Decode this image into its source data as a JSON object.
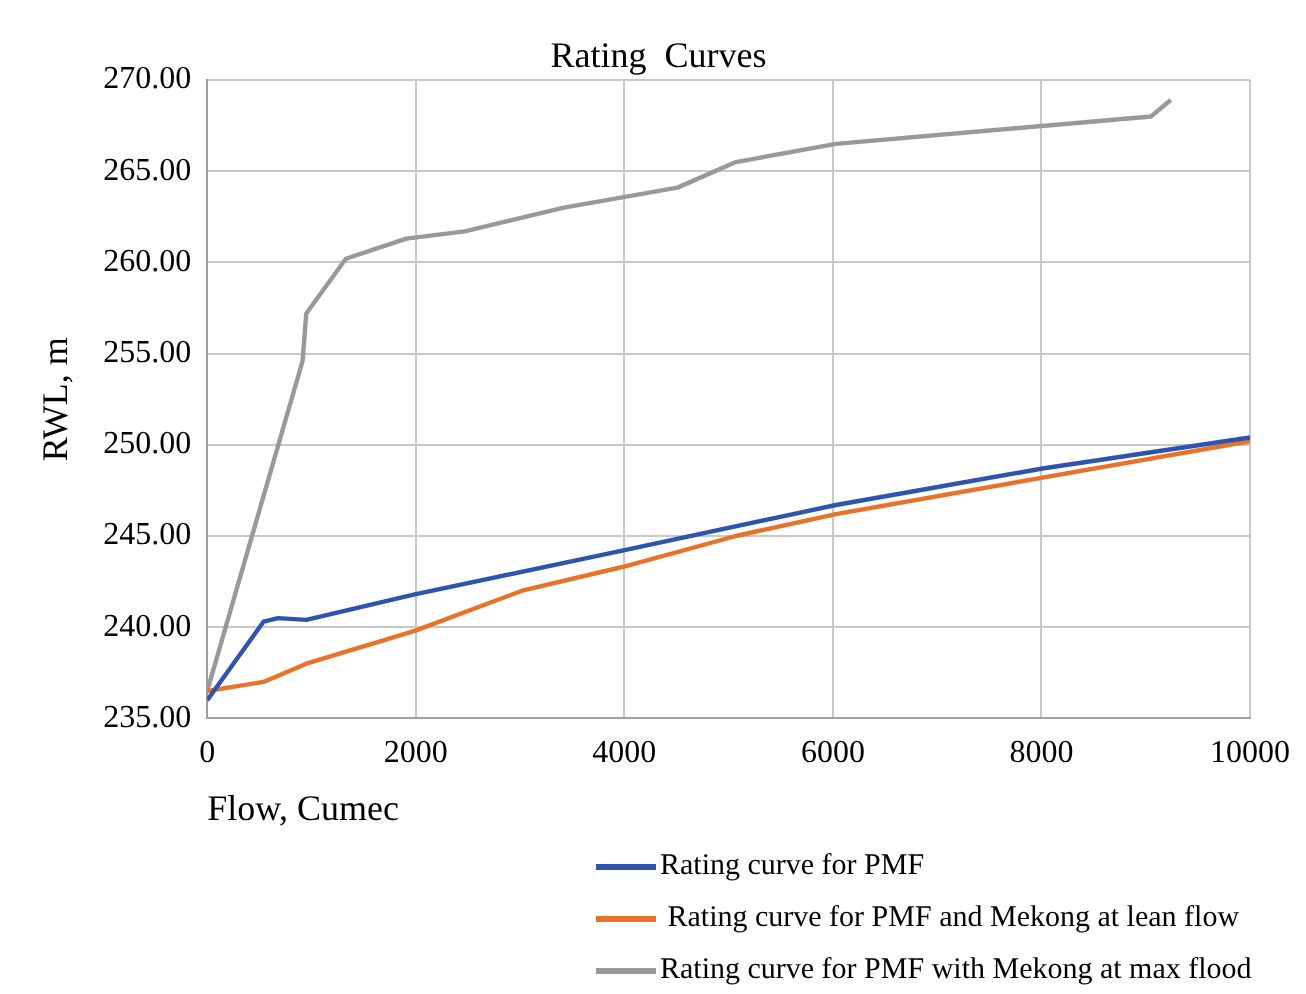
{
  "chart_data": {
    "type": "line",
    "title": "Rating  Curves",
    "xlabel": "Flow, Cumec",
    "ylabel": "RWL, m",
    "xlim": [
      0,
      10000
    ],
    "xticks": [
      0,
      2000,
      4000,
      6000,
      8000,
      10000
    ],
    "ylim": [
      235,
      270
    ],
    "yticks": [
      {
        "value": 235,
        "label": "235.00"
      },
      {
        "value": 240,
        "label": "240.00"
      },
      {
        "value": 245,
        "label": "245.00"
      },
      {
        "value": 250,
        "label": "250.00"
      },
      {
        "value": 255,
        "label": "255.00"
      },
      {
        "value": 260,
        "label": "260.00"
      },
      {
        "value": 265,
        "label": "265.00"
      },
      {
        "value": 270,
        "label": "270.00"
      }
    ],
    "grid": true,
    "legend": "bottom",
    "marker": "none",
    "line_style": "solid",
    "series": [
      {
        "name": "Rating curve for PMF",
        "color": "#2e54b0",
        "x": [
          0,
          540,
          680,
          950,
          1990,
          3980,
          6030,
          8010,
          10000
        ],
        "values": [
          236.0,
          240.3,
          240.5,
          240.4,
          241.8,
          244.2,
          246.7,
          248.7,
          250.4
        ]
      },
      {
        "name": " Rating curve for PMF and Mekong at lean flow",
        "color": "#e8722a",
        "x": [
          0,
          540,
          950,
          1990,
          3020,
          3980,
          5070,
          6030,
          8010,
          10000
        ],
        "values": [
          236.5,
          237.0,
          238.0,
          239.8,
          242.0,
          243.3,
          245.0,
          246.2,
          248.2,
          250.2
        ]
      },
      {
        "name": "Rating curve for PMF with Mekong at max flood",
        "color": "#999999",
        "x": [
          0,
          915,
          950,
          1330,
          1910,
          2470,
          3420,
          4510,
          5070,
          6030,
          9050,
          9240
        ],
        "values": [
          236.5,
          254.6,
          257.2,
          260.2,
          261.3,
          261.7,
          263.0,
          264.1,
          265.5,
          266.5,
          268.0,
          268.9
        ]
      }
    ]
  }
}
